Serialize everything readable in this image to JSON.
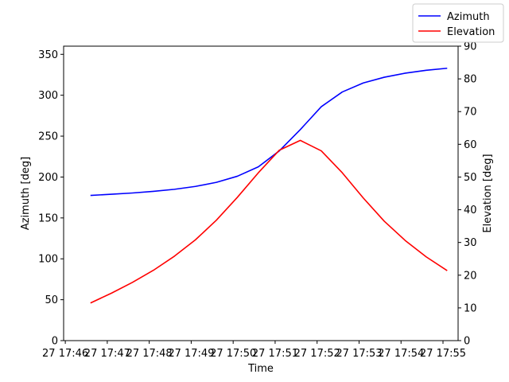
{
  "chart_data": {
    "type": "line",
    "xlabel": "Time",
    "ylabel_left": "Azimuth [deg]",
    "ylabel_right": "Elevation [deg]",
    "x_tick_labels": [
      "27 17:46",
      "27 17:47",
      "27 17:48",
      "27 17:49",
      "27 17:50",
      "27 17:51",
      "27 17:52",
      "27 17:53",
      "27 17:54",
      "27 17:55"
    ],
    "x_tick_minutes": [
      46,
      47,
      48,
      49,
      50,
      51,
      52,
      53,
      54,
      55
    ],
    "xlim": [
      45.96,
      55.36
    ],
    "ylim_left": [
      0,
      360
    ],
    "ylim_right": [
      0,
      90
    ],
    "yticks_left": [
      0,
      50,
      100,
      150,
      200,
      250,
      300,
      350
    ],
    "yticks_right": [
      0,
      10,
      20,
      30,
      40,
      50,
      60,
      70,
      80,
      90
    ],
    "grid": false,
    "legend_position": "top-right",
    "series": [
      {
        "name": "Azimuth",
        "axis": "left",
        "color": "#0000ff",
        "x": [
          46.6,
          47.1,
          47.6,
          48.1,
          48.6,
          49.1,
          49.6,
          50.1,
          50.6,
          51.1,
          51.6,
          52.1,
          52.6,
          53.1,
          53.6,
          54.1,
          54.6,
          55.1
        ],
        "y": [
          177.5,
          179,
          180.5,
          182.5,
          185,
          188.5,
          193.5,
          201,
          212.5,
          232,
          258,
          286,
          304,
          315,
          322,
          327,
          330.5,
          333
        ]
      },
      {
        "name": "Elevation",
        "axis": "right",
        "color": "#ff0000",
        "x": [
          46.6,
          47.1,
          47.6,
          48.1,
          48.6,
          49.1,
          49.6,
          50.1,
          50.6,
          51.1,
          51.6,
          52.1,
          52.6,
          53.1,
          53.6,
          54.1,
          54.6,
          55.1
        ],
        "y": [
          11.5,
          14.5,
          17.8,
          21.5,
          25.8,
          30.8,
          36.8,
          43.8,
          51.3,
          58.2,
          61.2,
          58,
          51.3,
          43.6,
          36.5,
          30.6,
          25.6,
          21.4
        ]
      }
    ]
  }
}
